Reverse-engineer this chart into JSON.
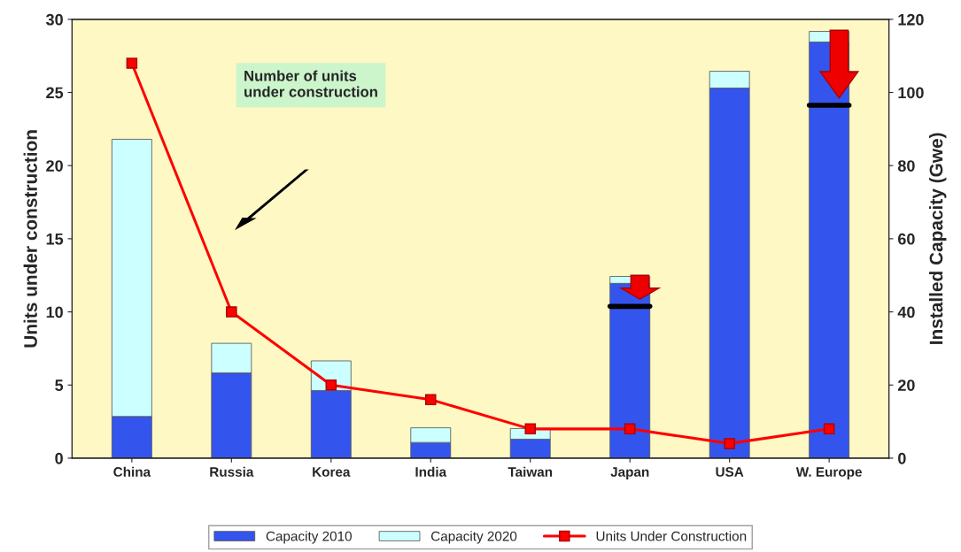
{
  "chart_data": {
    "type": "bar",
    "stacked": true,
    "categories": [
      "China",
      "Russia",
      "Korea",
      "India",
      "Taiwan",
      "Japan",
      "USA",
      "W. Europe"
    ],
    "series": [
      {
        "name": "Capacity 2010",
        "color": "#3355ee",
        "axis": "y2",
        "values": [
          11.4,
          23.3,
          18.5,
          4.3,
          5.2,
          47.8,
          101.2,
          113.8
        ]
      },
      {
        "name": "Capacity 2020",
        "color": "#ccffff",
        "axis": "y2",
        "values": [
          75.8,
          8.1,
          8.1,
          4.0,
          2.9,
          1.9,
          4.6,
          2.9
        ]
      },
      {
        "name": "Units Under Construction",
        "type": "line",
        "color": "#ff0000",
        "marker": "square",
        "values": [
          27,
          10,
          5,
          4,
          2,
          2,
          1,
          2
        ]
      }
    ],
    "ylabel": "Units under construction",
    "y2label": "Installed Capacity (Gwe)",
    "ylim": [
      0,
      30
    ],
    "yticks": [
      0,
      5,
      10,
      15,
      20,
      25,
      30
    ],
    "y2lim": [
      0,
      120
    ],
    "y2ticks": [
      0,
      20,
      40,
      60,
      80,
      100,
      120
    ],
    "annotations": [
      "Number of units\nunder construction"
    ],
    "legend": "bottom",
    "grid": false
  }
}
